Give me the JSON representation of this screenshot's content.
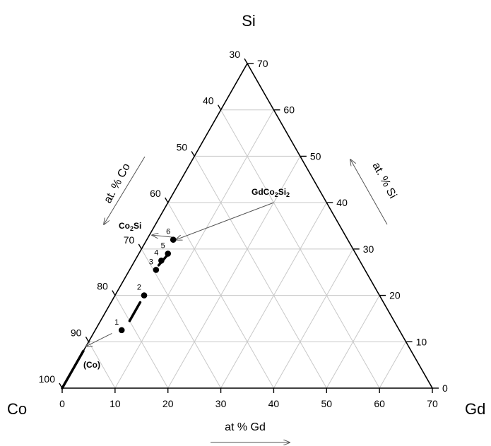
{
  "corners": {
    "top": "Si",
    "left": "Co",
    "right": "Gd"
  },
  "axis_labels": {
    "left": "at. % Co",
    "right": "at. % Si",
    "bottom": "at % Gd"
  },
  "ticks": {
    "bottom": [
      "0",
      "10",
      "20",
      "30",
      "40",
      "50",
      "60",
      "70"
    ],
    "right": [
      "0",
      "10",
      "20",
      "30",
      "40",
      "50",
      "60",
      "70"
    ],
    "left": [
      "100",
      "90",
      "80",
      "70",
      "60",
      "50",
      "40",
      "30"
    ]
  },
  "phases": {
    "co2si": "Co",
    "co2si_sub": "2",
    "co2si_tail": "Si",
    "gdco2si2_a": "GdCo",
    "gdco2si2_b": "2",
    "gdco2si2_c": "Si",
    "gdco2si2_d": "2",
    "co": "(Co)"
  },
  "colors": {
    "frame": "#000000",
    "grid": "#c8c8c8",
    "arrow": "#555555"
  },
  "chart_data": {
    "type": "ternary",
    "components": [
      "Co",
      "Si",
      "Gd"
    ],
    "range_percent": [
      0,
      70
    ],
    "grid_step": 10,
    "points": [
      {
        "label": "1",
        "gd": 5.0,
        "si": 12.5
      },
      {
        "label": "2",
        "gd": 5.5,
        "si": 20.0
      },
      {
        "label": "3",
        "gd": 5.0,
        "si": 25.5
      },
      {
        "label": "4",
        "gd": 5.0,
        "si": 27.5
      },
      {
        "label": "5",
        "gd": 5.5,
        "si": 29.0
      },
      {
        "label": "6",
        "gd": 5.0,
        "si": 32.0
      }
    ],
    "segments": [
      {
        "from": {
          "gd": 0,
          "si": 0
        },
        "to": {
          "gd": 0,
          "si": 8
        }
      },
      {
        "from": {
          "gd": 5.5,
          "si": 14.5
        },
        "to": {
          "gd": 5.5,
          "si": 18.5
        }
      },
      {
        "from": {
          "gd": 5.0,
          "si": 26.5
        },
        "to": {
          "gd": 5.5,
          "si": 28.5
        }
      }
    ],
    "arrows": [
      {
        "from": {
          "gd": 3.5,
          "si": 11.8
        },
        "to": {
          "gd": 0,
          "si": 9.0
        }
      },
      {
        "from": {
          "gd": 20,
          "si": 40
        },
        "to": {
          "gd": 5.5,
          "si": 32.0
        }
      },
      {
        "from": {
          "gd": 5.0,
          "si": 32.5
        },
        "to": {
          "gd": 0.5,
          "si": 33.0
        }
      }
    ]
  }
}
